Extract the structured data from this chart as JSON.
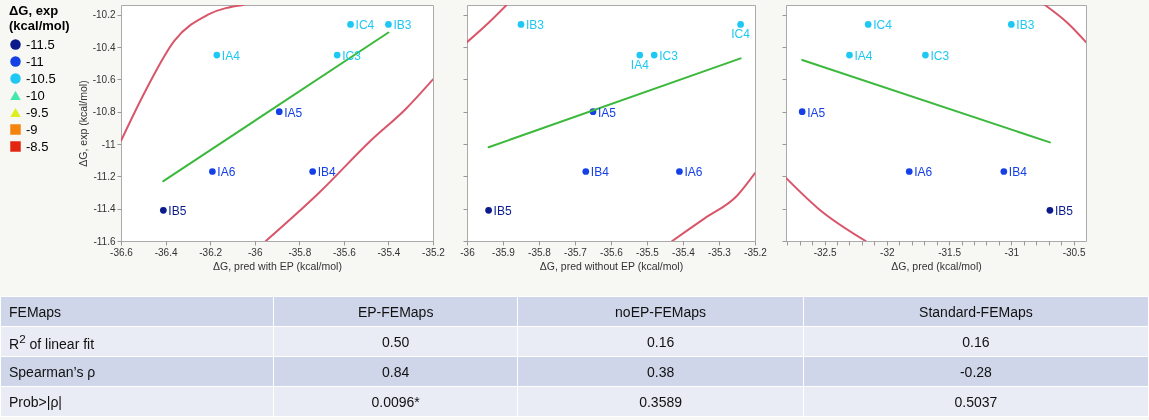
{
  "chart_data": [
    {
      "type": "scatter",
      "xlabel": "ΔG, pred with EP (kcal/mol)",
      "ylabel": "ΔG, exp (kcal/mol)",
      "legend_title": "ΔG, exp (kcal/mol)",
      "legend": "left",
      "xlim": [
        -36.6,
        -35.2
      ],
      "xticks": [
        -36.6,
        -36.4,
        -36.2,
        -36,
        -35.8,
        -35.6,
        -35.4,
        -35.2
      ],
      "ylim": [
        -11.6,
        -10.14
      ],
      "yticks": [
        -11.6,
        -11.4,
        -11.2,
        -11,
        -10.8,
        -10.6,
        -10.4,
        -10.2
      ],
      "series": [
        {
          "name": "-11.5",
          "color": "#0b1b8c",
          "marker": "circle",
          "x": [
            -36.41
          ],
          "values": [
            -11.41
          ],
          "value_labels": [
            "IB5"
          ]
        },
        {
          "name": "-11",
          "color": "#1540e6",
          "marker": "circle",
          "x": [
            -36.19,
            -35.74,
            -35.89
          ],
          "values": [
            -11.17,
            -11.17,
            -10.8
          ],
          "value_labels": [
            "IA6",
            "IB4",
            "IA5"
          ]
        },
        {
          "name": "-10.5",
          "color": "#1fc8f2",
          "marker": "circle",
          "x": [
            -36.17,
            -35.63,
            -35.57,
            -35.4
          ],
          "values": [
            -10.45,
            -10.45,
            -10.26,
            -10.26
          ],
          "value_labels": [
            "IA4",
            "IC3",
            "IC4",
            "IB3"
          ]
        },
        {
          "name": "-10",
          "color": "#44e8a8",
          "marker": "triangle"
        },
        {
          "name": "-9.5",
          "color": "#dcf020",
          "marker": "triangle"
        },
        {
          "name": "-9",
          "color": "#f5840f",
          "marker": "square"
        },
        {
          "name": "-8.5",
          "color": "#e2260f",
          "marker": "square"
        },
        {
          "type": "line",
          "color": "#3cb93c",
          "x": [
            -36.41,
            -35.4
          ],
          "values": [
            -11.23,
            -10.31
          ]
        },
        {
          "type": "line",
          "color": "#d9566a",
          "x": [
            -36.6,
            -36.49,
            -36.36,
            -36.21,
            -36.05
          ],
          "values": [
            -10.98,
            -10.67,
            -10.36,
            -10.2,
            -10.14
          ]
        },
        {
          "type": "line",
          "color": "#d9566a",
          "x": [
            -35.95,
            -35.71,
            -35.48,
            -35.32,
            -35.2
          ],
          "values": [
            -11.6,
            -11.3,
            -10.98,
            -10.78,
            -10.6
          ]
        }
      ]
    },
    {
      "type": "scatter",
      "xlabel": "ΔG, pred without EP (kcal/mol)",
      "tick_labels": "x",
      "xlim": [
        -36,
        -35.2
      ],
      "xticks": [
        -36,
        -35.9,
        -35.8,
        -35.7,
        -35.6,
        -35.5,
        -35.4,
        -35.3,
        -35.2
      ],
      "ylim": [
        -11.6,
        -10.14
      ],
      "yticks": [
        -11.6,
        -11.4,
        -11.2,
        -11,
        -10.8,
        -10.6,
        -10.4,
        -10.2
      ],
      "series": [
        {
          "color": "#0b1b8c",
          "marker": "circle",
          "x": [
            -35.94
          ],
          "values": [
            -11.41
          ],
          "value_labels": [
            "IB5"
          ]
        },
        {
          "color": "#1540e6",
          "marker": "circle",
          "x": [
            -35.41,
            -35.67,
            -35.65
          ],
          "values": [
            -11.17,
            -11.17,
            -10.8
          ],
          "value_labels": [
            "IA6",
            "IB4",
            "IA5"
          ]
        },
        {
          "color": "#1fc8f2",
          "marker": "circle",
          "x": [
            -35.52,
            -35.48,
            -35.24,
            -35.85
          ],
          "values": [
            -10.45,
            -10.45,
            -10.26,
            -10.26
          ],
          "value_labels": [
            "IA4",
            "IC3",
            "IC4",
            "IB3"
          ]
        },
        {
          "type": "line",
          "color": "#3cb93c",
          "x": [
            -35.94,
            -35.24
          ],
          "values": [
            -11.02,
            -10.47
          ]
        },
        {
          "type": "line",
          "color": "#d9566a",
          "x": [
            -36,
            -35.94,
            -35.89
          ],
          "values": [
            -10.37,
            -10.25,
            -10.14
          ]
        },
        {
          "type": "line",
          "color": "#d9566a",
          "x": [
            -35.43,
            -35.34,
            -35.25,
            -35.2
          ],
          "values": [
            -11.6,
            -11.46,
            -11.32,
            -11.18
          ]
        }
      ]
    },
    {
      "type": "scatter",
      "xlabel": "ΔG, pred (kcal/mol)",
      "tick_labels": "x",
      "xlim": [
        -32.81,
        -30.4
      ],
      "xticks": [
        {
          "value": -32.8,
          "label": null
        },
        {
          "value": -32.7,
          "label": null
        },
        {
          "value": -32.6,
          "label": null
        },
        -32.5,
        {
          "value": -32.4,
          "label": null
        },
        {
          "value": -32.3,
          "label": null
        },
        {
          "value": -32.2,
          "label": null
        },
        {
          "value": -32.1,
          "label": null
        },
        -32,
        {
          "value": -31.9,
          "label": null
        },
        {
          "value": -31.8,
          "label": null
        },
        {
          "value": -31.7,
          "label": null
        },
        {
          "value": -31.6,
          "label": null
        },
        -31.5,
        {
          "value": -31.4,
          "label": null
        },
        {
          "value": -31.3,
          "label": null
        },
        {
          "value": -31.2,
          "label": null
        },
        {
          "value": -31.1,
          "label": null
        },
        -31,
        {
          "value": -30.9,
          "label": null
        },
        {
          "value": -30.8,
          "label": null
        },
        {
          "value": -30.7,
          "label": null
        },
        {
          "value": -30.6,
          "label": null
        },
        -30.5
      ],
      "ylim": [
        -11.6,
        -10.14
      ],
      "yticks": [
        -11.6,
        -11.4,
        -11.2,
        -11,
        -10.8,
        -10.6,
        -10.4,
        -10.2
      ],
      "series": [
        {
          "color": "#0b1b8c",
          "marker": "circle",
          "x": [
            -30.69
          ],
          "values": [
            -11.41
          ],
          "value_labels": [
            "IB5"
          ]
        },
        {
          "color": "#1540e6",
          "marker": "circle",
          "x": [
            -31.82,
            -31.06,
            -32.68
          ],
          "values": [
            -11.17,
            -11.17,
            -10.8
          ],
          "value_labels": [
            "IA6",
            "IB4",
            "IA5"
          ]
        },
        {
          "color": "#1fc8f2",
          "marker": "circle",
          "x": [
            -32.3,
            -31.69,
            -32.15,
            -31.0
          ],
          "values": [
            -10.45,
            -10.45,
            -10.26,
            -10.26
          ],
          "value_labels": [
            "IA4",
            "IC3",
            "IC4",
            "IB3"
          ]
        },
        {
          "type": "line",
          "color": "#3cb93c",
          "x": [
            -32.68,
            -30.69
          ],
          "values": [
            -10.48,
            -10.99
          ]
        },
        {
          "type": "line",
          "color": "#d9566a",
          "x": [
            -30.73,
            -30.55,
            -30.4
          ],
          "values": [
            -10.14,
            -10.25,
            -10.37
          ]
        },
        {
          "type": "line",
          "color": "#d9566a",
          "x": [
            -32.81,
            -32.55,
            -32.17
          ],
          "values": [
            -11.21,
            -11.4,
            -11.6
          ]
        }
      ]
    },
    {
      "type": "other",
      "categories": [
        "FEMaps",
        "EP-FEMaps",
        "noEP-FEMaps",
        "Standard-FEMaps"
      ],
      "y_categories": [
        "R$^{2}$ of linear fit",
        "Spearman’s ρ",
        "Prob>|ρ|"
      ],
      "cell_labels": [
        [
          "0.50",
          "0.16",
          "0.16"
        ],
        [
          "0.84",
          "0.38",
          "-0.28"
        ],
        [
          "0.0096*",
          "0.3589",
          "0.5037"
        ]
      ]
    }
  ]
}
